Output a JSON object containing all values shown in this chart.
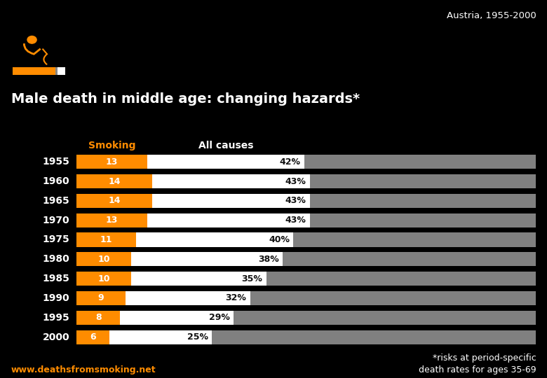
{
  "title": "Male death in middle age: changing hazards*",
  "subtitle": "Austria, 1955-2000",
  "years": [
    "1955",
    "1960",
    "1965",
    "1970",
    "1975",
    "1980",
    "1985",
    "1990",
    "1995",
    "2000"
  ],
  "smoking_values": [
    13,
    14,
    14,
    13,
    11,
    10,
    10,
    9,
    8,
    6
  ],
  "allcauses_values": [
    42,
    43,
    43,
    43,
    40,
    38,
    35,
    32,
    29,
    25
  ],
  "smoking_color": "#FF8C00",
  "allcauses_color": "#FFFFFF",
  "bar_bg_color": "#808080",
  "background_color": "#000000",
  "text_color": "#FFFFFF",
  "smoking_label_color": "#FF8C00",
  "smoking_col_label": "Smoking",
  "allcauses_col_label": "All causes",
  "footer_left": "www.deathsfromsmoking.net",
  "footer_right": "*risks at period-specific\ndeath rates for ages 35-69",
  "xlim_max": 100,
  "bar_scale": 1.18
}
